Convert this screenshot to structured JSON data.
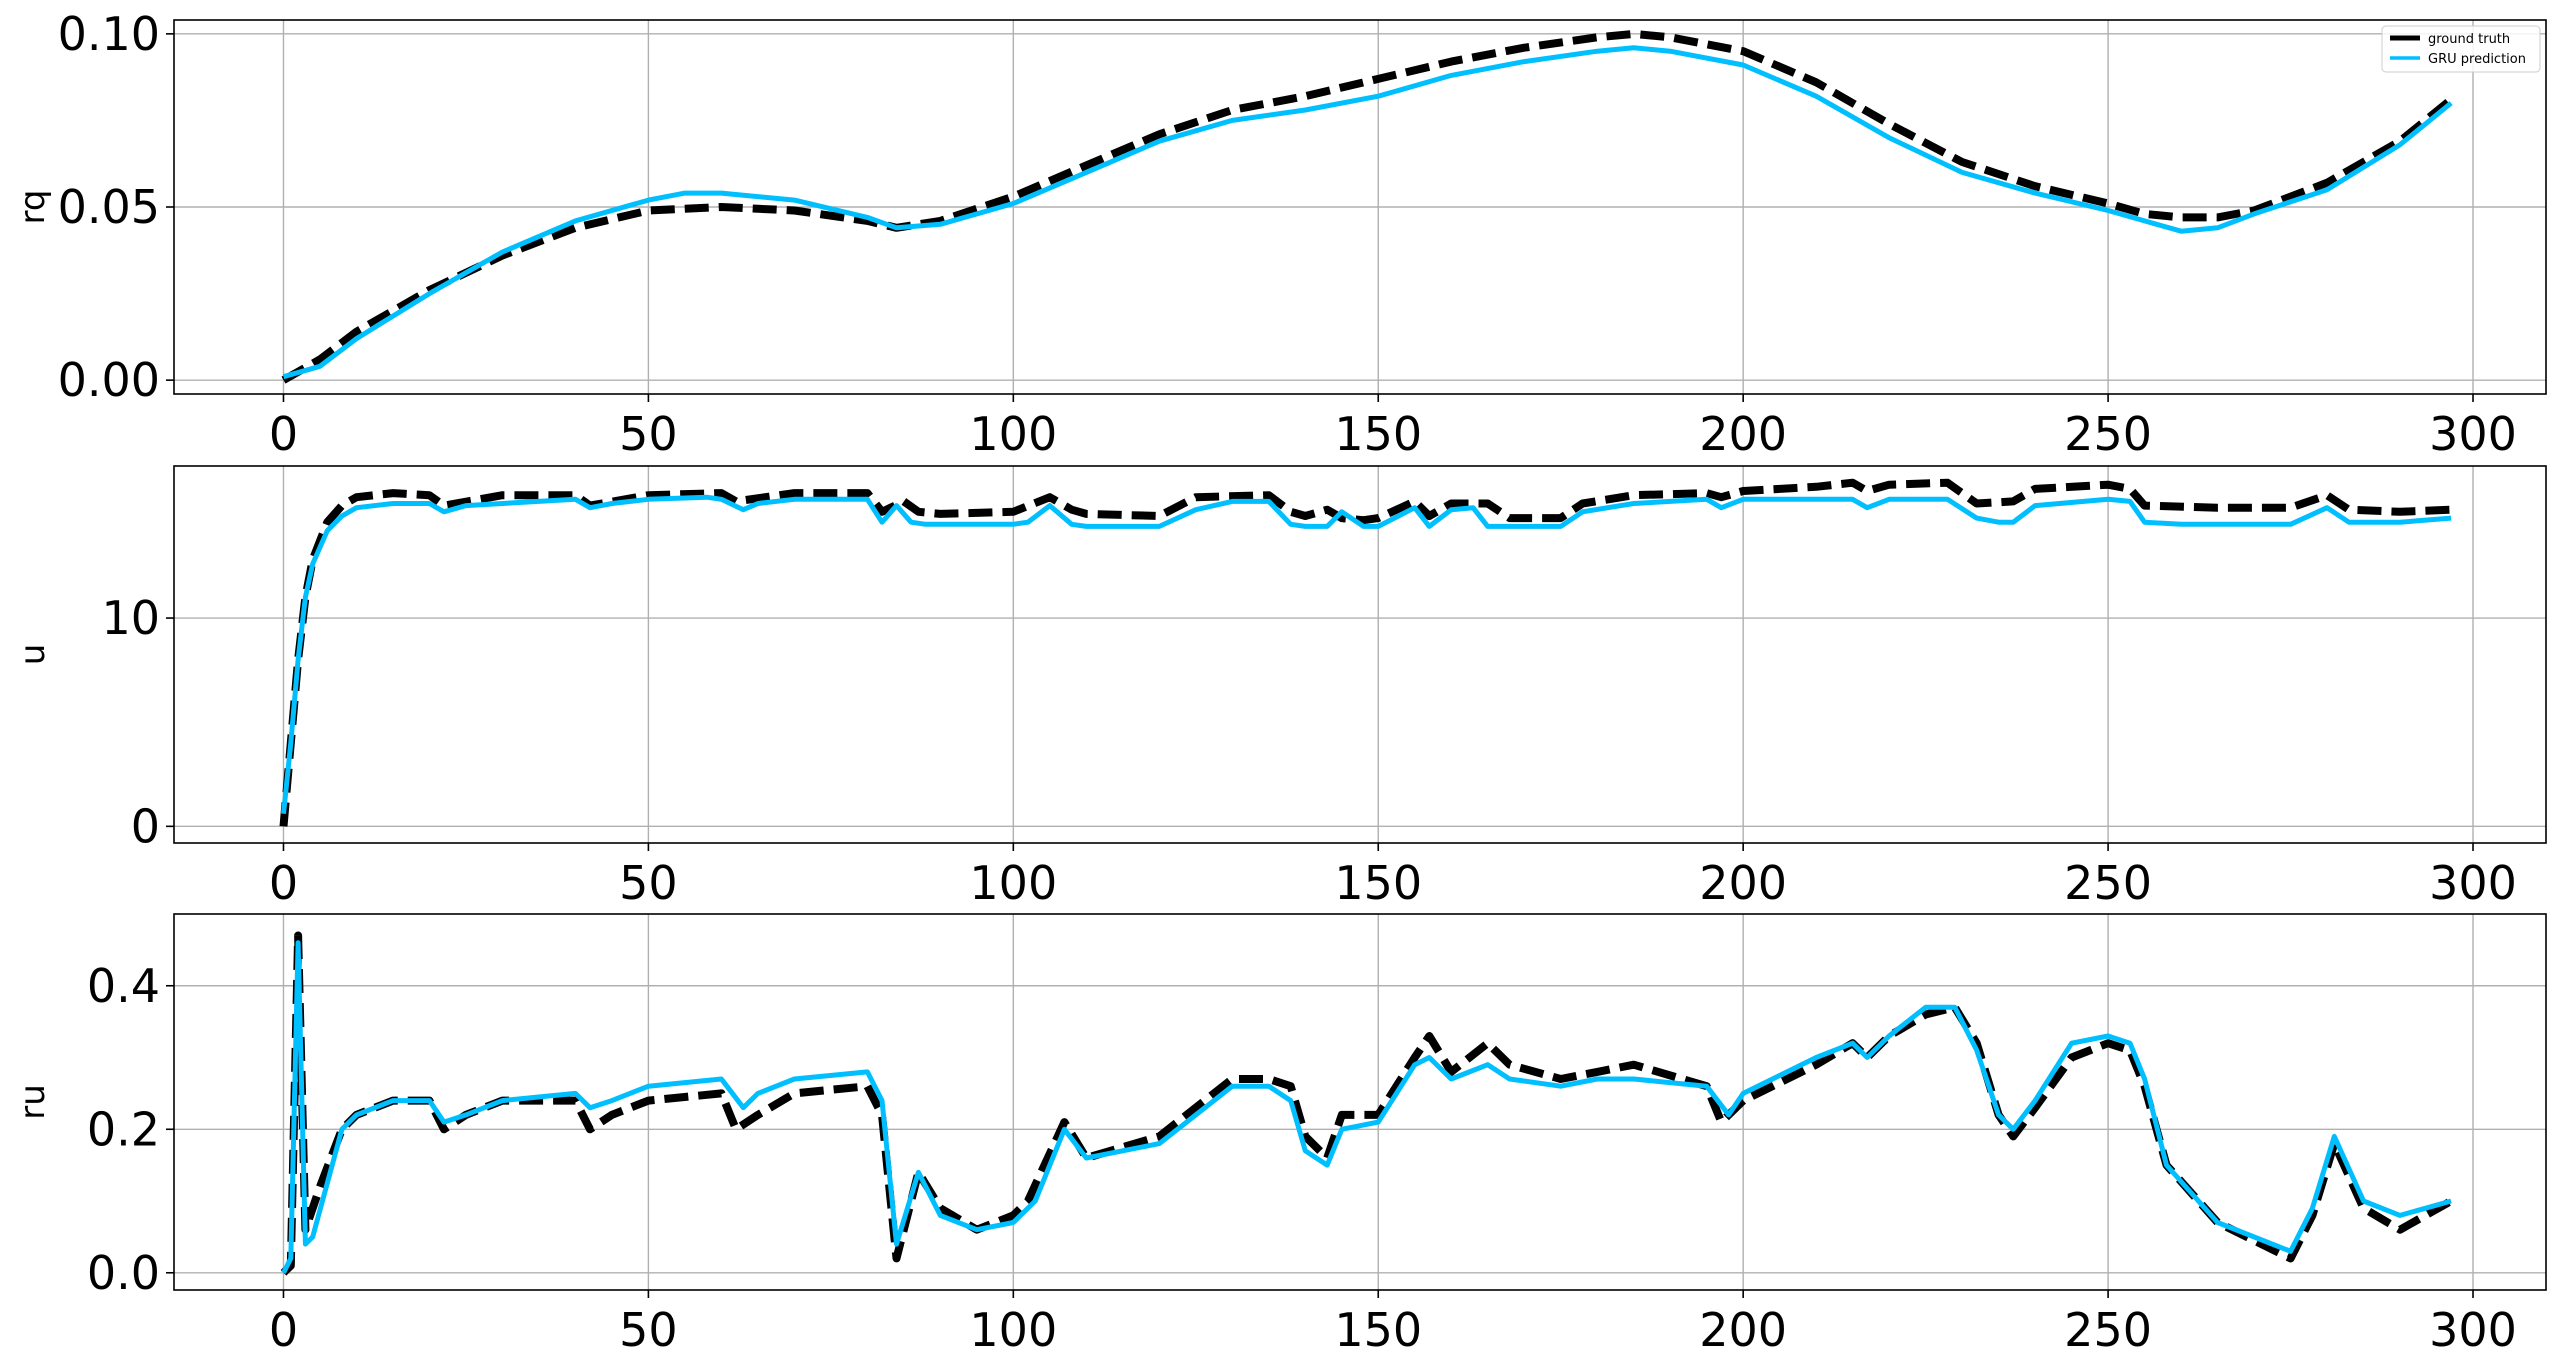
{
  "legend": [
    {
      "label": "ground truth",
      "color": "#000000",
      "style": "dashed"
    },
    {
      "label": "GRU prediction",
      "color": "#00bfff",
      "style": "solid"
    }
  ],
  "chart_data": [
    {
      "type": "line",
      "ylabel": "rq",
      "xlim": [
        -15,
        310
      ],
      "ylim": [
        -0.004,
        0.104
      ],
      "xticks": [
        0,
        50,
        100,
        150,
        200,
        250,
        300
      ],
      "yticks": [
        0.0,
        0.05,
        0.1
      ],
      "ytick_labels": [
        "0.00",
        "0.05",
        "0.10"
      ],
      "grid": true,
      "legend_position": "top-right",
      "series": [
        {
          "name": "ground truth",
          "color": "#000000",
          "style": "dashed",
          "x": [
            0,
            5,
            10,
            20,
            30,
            40,
            50,
            60,
            70,
            80,
            84,
            90,
            100,
            110,
            120,
            130,
            140,
            150,
            160,
            170,
            180,
            185,
            190,
            200,
            210,
            220,
            230,
            240,
            250,
            255,
            260,
            265,
            270,
            280,
            290,
            297
          ],
          "y": [
            0.0,
            0.006,
            0.014,
            0.026,
            0.036,
            0.044,
            0.049,
            0.05,
            0.049,
            0.046,
            0.044,
            0.046,
            0.053,
            0.062,
            0.071,
            0.078,
            0.082,
            0.087,
            0.092,
            0.096,
            0.099,
            0.1,
            0.099,
            0.095,
            0.086,
            0.074,
            0.063,
            0.056,
            0.051,
            0.048,
            0.047,
            0.047,
            0.049,
            0.057,
            0.069,
            0.081
          ]
        },
        {
          "name": "GRU prediction",
          "color": "#00bfff",
          "style": "solid",
          "x": [
            0,
            5,
            10,
            20,
            30,
            40,
            50,
            55,
            60,
            70,
            80,
            84,
            90,
            100,
            110,
            120,
            130,
            140,
            150,
            160,
            170,
            180,
            185,
            190,
            200,
            210,
            220,
            230,
            240,
            250,
            255,
            260,
            265,
            270,
            280,
            290,
            297
          ],
          "y": [
            0.001,
            0.004,
            0.012,
            0.025,
            0.037,
            0.046,
            0.052,
            0.054,
            0.054,
            0.052,
            0.047,
            0.044,
            0.045,
            0.051,
            0.06,
            0.069,
            0.075,
            0.078,
            0.082,
            0.088,
            0.092,
            0.095,
            0.096,
            0.095,
            0.091,
            0.082,
            0.07,
            0.06,
            0.054,
            0.049,
            0.046,
            0.043,
            0.044,
            0.048,
            0.055,
            0.068,
            0.08
          ]
        }
      ]
    },
    {
      "type": "line",
      "ylabel": "u",
      "xlim": [
        -15,
        310
      ],
      "ylim": [
        -0.8,
        17.3
      ],
      "xticks": [
        0,
        50,
        100,
        150,
        200,
        250,
        300
      ],
      "yticks": [
        0,
        10
      ],
      "ytick_labels": [
        "0",
        "10"
      ],
      "grid": true,
      "series": [
        {
          "name": "ground truth",
          "color": "#000000",
          "style": "dashed",
          "x": [
            0,
            1,
            2,
            3,
            4,
            6,
            8,
            10,
            15,
            20,
            22,
            30,
            40,
            42,
            50,
            60,
            62,
            70,
            80,
            82,
            85,
            87,
            90,
            100,
            105,
            108,
            110,
            120,
            125,
            135,
            138,
            140,
            143,
            145,
            148,
            150,
            155,
            157,
            160,
            165,
            168,
            175,
            178,
            185,
            195,
            197,
            200,
            210,
            215,
            217,
            220,
            228,
            232,
            237,
            240,
            250,
            253,
            255,
            265,
            275,
            280,
            283,
            290,
            297
          ],
          "y": [
            0,
            4,
            8,
            11,
            12.8,
            14.6,
            15.4,
            15.8,
            16,
            15.9,
            15.4,
            15.9,
            15.9,
            15.4,
            15.9,
            16,
            15.6,
            16,
            16,
            15.1,
            15.6,
            15.1,
            15,
            15.1,
            15.8,
            15.2,
            15,
            14.9,
            15.8,
            15.9,
            15.1,
            14.9,
            15.2,
            14.8,
            14.7,
            14.8,
            15.6,
            14.9,
            15.5,
            15.5,
            14.8,
            14.8,
            15.5,
            15.9,
            16,
            15.8,
            16.1,
            16.3,
            16.5,
            16.1,
            16.4,
            16.5,
            15.5,
            15.6,
            16.2,
            16.4,
            16.2,
            15.4,
            15.3,
            15.3,
            15.9,
            15.2,
            15.1,
            15.2
          ]
        },
        {
          "name": "GRU prediction",
          "color": "#00bfff",
          "style": "solid",
          "x": [
            0,
            1,
            2,
            3,
            4,
            6,
            8,
            10,
            15,
            20,
            22,
            25,
            30,
            40,
            42,
            45,
            50,
            58,
            60,
            63,
            65,
            70,
            80,
            82,
            84,
            86,
            88,
            90,
            100,
            102,
            105,
            108,
            110,
            120,
            125,
            130,
            135,
            138,
            140,
            143,
            145,
            148,
            150,
            155,
            157,
            160,
            163,
            165,
            168,
            175,
            178,
            185,
            195,
            197,
            200,
            210,
            215,
            217,
            220,
            228,
            232,
            235,
            237,
            240,
            250,
            253,
            255,
            260,
            275,
            280,
            283,
            290,
            297
          ],
          "y": [
            0.6,
            4,
            8,
            11,
            12.6,
            14.2,
            14.9,
            15.3,
            15.5,
            15.5,
            15.1,
            15.4,
            15.5,
            15.7,
            15.3,
            15.5,
            15.7,
            15.8,
            15.7,
            15.2,
            15.5,
            15.7,
            15.7,
            14.6,
            15.4,
            14.6,
            14.5,
            14.5,
            14.5,
            14.6,
            15.4,
            14.5,
            14.4,
            14.4,
            15.2,
            15.6,
            15.6,
            14.5,
            14.4,
            14.4,
            15.1,
            14.4,
            14.4,
            15.3,
            14.4,
            15.2,
            15.3,
            14.4,
            14.4,
            14.4,
            15.1,
            15.5,
            15.7,
            15.3,
            15.7,
            15.7,
            15.7,
            15.3,
            15.7,
            15.7,
            14.8,
            14.6,
            14.6,
            15.4,
            15.7,
            15.6,
            14.6,
            14.5,
            14.5,
            15.3,
            14.6,
            14.6,
            14.8
          ]
        }
      ]
    },
    {
      "type": "line",
      "ylabel": "ru",
      "xlim": [
        -15,
        310
      ],
      "ylim": [
        -0.024,
        0.5
      ],
      "xticks": [
        0,
        50,
        100,
        150,
        200,
        250,
        300
      ],
      "yticks": [
        0.0,
        0.2,
        0.4
      ],
      "ytick_labels": [
        "0.0",
        "0.2",
        "0.4"
      ],
      "grid": true,
      "series": [
        {
          "name": "ground truth",
          "color": "#000000",
          "style": "dashed",
          "x": [
            0,
            1,
            2,
            3,
            5,
            8,
            10,
            15,
            20,
            22,
            25,
            30,
            40,
            42,
            45,
            50,
            60,
            62,
            65,
            70,
            80,
            82,
            84,
            87,
            90,
            95,
            100,
            102,
            107,
            110,
            120,
            125,
            130,
            135,
            138,
            140,
            143,
            145,
            150,
            155,
            157,
            160,
            165,
            168,
            175,
            180,
            185,
            195,
            197,
            200,
            210,
            215,
            217,
            220,
            225,
            229,
            232,
            235,
            237,
            240,
            245,
            250,
            253,
            255,
            258,
            265,
            275,
            278,
            281,
            285,
            290,
            297
          ],
          "y": [
            0,
            0.01,
            0.47,
            0.06,
            0.12,
            0.2,
            0.22,
            0.24,
            0.24,
            0.2,
            0.22,
            0.24,
            0.24,
            0.2,
            0.22,
            0.24,
            0.25,
            0.2,
            0.22,
            0.25,
            0.26,
            0.22,
            0.02,
            0.14,
            0.09,
            0.06,
            0.08,
            0.1,
            0.21,
            0.16,
            0.19,
            0.23,
            0.27,
            0.27,
            0.26,
            0.19,
            0.16,
            0.22,
            0.22,
            0.3,
            0.33,
            0.28,
            0.32,
            0.29,
            0.27,
            0.28,
            0.29,
            0.26,
            0.21,
            0.24,
            0.29,
            0.32,
            0.3,
            0.33,
            0.36,
            0.37,
            0.32,
            0.22,
            0.19,
            0.23,
            0.3,
            0.32,
            0.31,
            0.26,
            0.15,
            0.07,
            0.02,
            0.08,
            0.18,
            0.09,
            0.06,
            0.1
          ]
        },
        {
          "name": "GRU prediction",
          "color": "#00bfff",
          "style": "solid",
          "x": [
            0,
            1,
            2,
            3,
            4,
            8,
            10,
            15,
            20,
            22,
            25,
            30,
            40,
            42,
            45,
            50,
            60,
            63,
            65,
            70,
            80,
            82,
            84,
            87,
            90,
            95,
            100,
            103,
            107,
            110,
            120,
            125,
            130,
            135,
            138,
            140,
            143,
            145,
            150,
            155,
            157,
            160,
            165,
            168,
            175,
            180,
            185,
            195,
            198,
            200,
            210,
            215,
            217,
            220,
            225,
            229,
            232,
            235,
            237,
            240,
            245,
            250,
            253,
            255,
            258,
            265,
            275,
            278,
            281,
            285,
            290,
            297
          ],
          "y": [
            0,
            0.02,
            0.46,
            0.04,
            0.05,
            0.2,
            0.22,
            0.24,
            0.24,
            0.21,
            0.22,
            0.24,
            0.25,
            0.23,
            0.24,
            0.26,
            0.27,
            0.23,
            0.25,
            0.27,
            0.28,
            0.24,
            0.04,
            0.14,
            0.08,
            0.06,
            0.07,
            0.1,
            0.2,
            0.16,
            0.18,
            0.22,
            0.26,
            0.26,
            0.24,
            0.17,
            0.15,
            0.2,
            0.21,
            0.29,
            0.3,
            0.27,
            0.29,
            0.27,
            0.26,
            0.27,
            0.27,
            0.26,
            0.22,
            0.25,
            0.3,
            0.32,
            0.3,
            0.33,
            0.37,
            0.37,
            0.31,
            0.22,
            0.2,
            0.24,
            0.32,
            0.33,
            0.32,
            0.27,
            0.15,
            0.07,
            0.03,
            0.09,
            0.19,
            0.1,
            0.08,
            0.1
          ]
        }
      ]
    }
  ]
}
